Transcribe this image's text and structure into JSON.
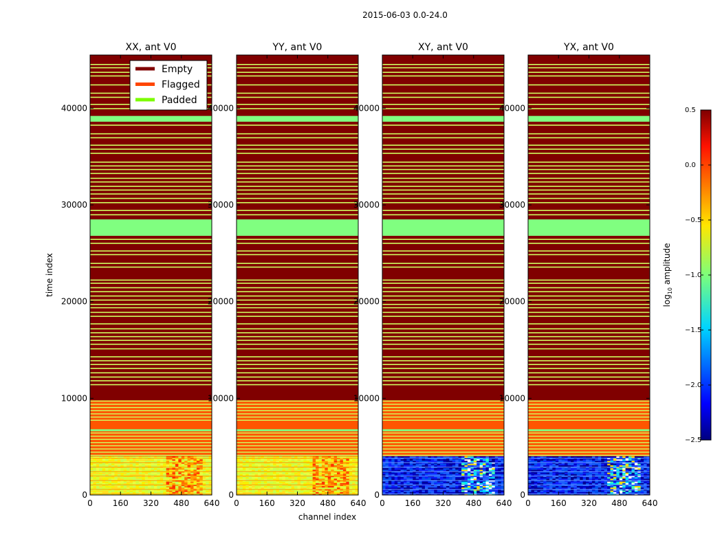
{
  "figure_title": "2015-06-03 0.0-24.0",
  "chart_data": {
    "type": "heatmap",
    "suptitle": "2015-06-03 0.0-24.0",
    "xlabel": "channel index",
    "ylabel": "time index",
    "xlim": [
      0,
      640
    ],
    "ylim": [
      0,
      45500
    ],
    "xticks": [
      0,
      160,
      320,
      480,
      640
    ],
    "yticks": [
      0,
      10000,
      20000,
      30000,
      40000
    ],
    "colorbar": {
      "label": "log10 amplitude",
      "range": [
        -2.5,
        0.5
      ],
      "ticks": [
        "0.5",
        "0.0",
        "−0.5",
        "−1.0",
        "−1.5",
        "−2.0",
        "−2.5"
      ]
    },
    "legend": {
      "placement": "top-right of first panel",
      "entries": [
        {
          "label": "Empty",
          "color": "#800000"
        },
        {
          "label": "Flagged",
          "color": "#ff4500"
        },
        {
          "label": "Padded",
          "color": "#7cfc00"
        }
      ]
    },
    "panels": [
      {
        "title": "XX, ant V0",
        "kind": "parallel"
      },
      {
        "title": "YY, ant V0",
        "kind": "parallel"
      },
      {
        "title": "XY, ant V0",
        "kind": "cross"
      },
      {
        "title": "YX, ant V0",
        "kind": "cross"
      }
    ],
    "regions": [
      {
        "state": "Padded",
        "from": 38600,
        "to": 39200
      },
      {
        "state": "Padded",
        "from": 26800,
        "to": 28500
      },
      {
        "state": "Empty",
        "from": 10000,
        "to": 45500,
        "note": "with frequent thin padded lines"
      },
      {
        "state": "Flagged",
        "from": 4000,
        "to": 9800
      },
      {
        "state": "Data",
        "from": 0,
        "to": 4000
      }
    ]
  },
  "colors": {
    "empty": "#800000",
    "flagged": "#ff5500",
    "padded": "#80ff80",
    "band": "#d0ff60"
  }
}
